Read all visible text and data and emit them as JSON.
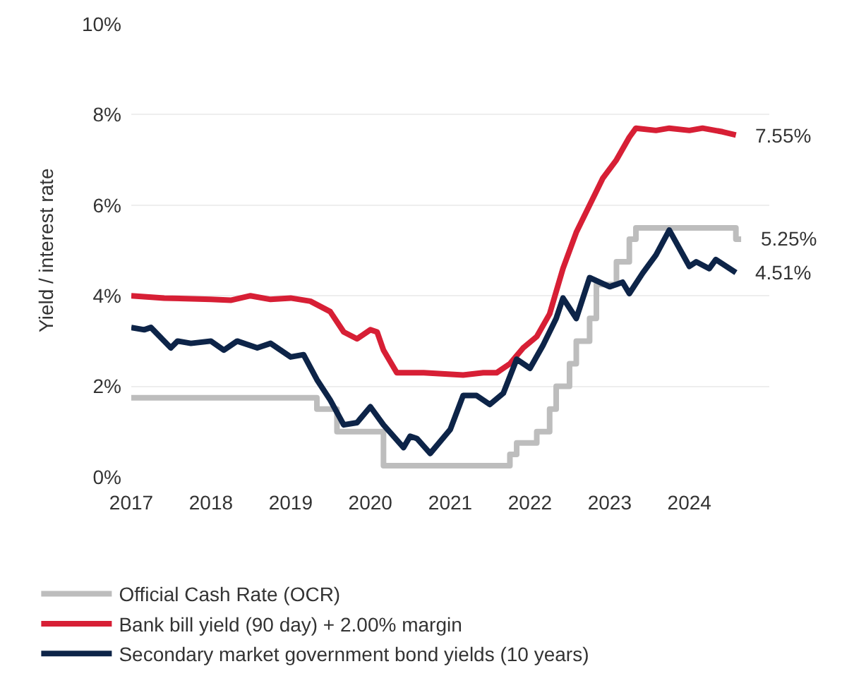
{
  "chart_data": {
    "type": "line",
    "ylabel": "Yield / interest rate",
    "xlim": [
      "2017-01-01",
      "2025-01-01"
    ],
    "xticks": [
      {
        "value": "2017-01-01",
        "label": "2017"
      },
      {
        "value": "2018-01-01",
        "label": "2018"
      },
      {
        "value": "2019-01-01",
        "label": "2019"
      },
      {
        "value": "2020-01-01",
        "label": "2020"
      },
      {
        "value": "2021-01-01",
        "label": "2021"
      },
      {
        "value": "2022-01-01",
        "label": "2022"
      },
      {
        "value": "2023-01-01",
        "label": "2023"
      },
      {
        "value": "2024-01-01",
        "label": "2024"
      }
    ],
    "ylim": [
      0,
      10
    ],
    "yticks": [
      {
        "value": 0,
        "label": "0%"
      },
      {
        "value": 2,
        "label": "2%"
      },
      {
        "value": 4,
        "label": "4%"
      },
      {
        "value": 6,
        "label": "6%"
      },
      {
        "value": 8,
        "label": "8%"
      },
      {
        "value": 10,
        "label": "10%"
      }
    ],
    "grid": "y",
    "legend": "bottom",
    "series": [
      {
        "name": "Official Cash Rate (OCR)",
        "type": "step",
        "color": "#bdbdbd",
        "x": [
          "2017-01",
          "2019-05",
          "2019-08",
          "2020-03",
          "2021-10",
          "2021-11",
          "2022-02",
          "2022-04",
          "2022-05",
          "2022-07",
          "2022-08",
          "2022-10",
          "2022-11",
          "2023-02",
          "2023-04",
          "2023-05",
          "2024-08",
          "2024-08-25"
        ],
        "values": [
          1.75,
          1.5,
          1.0,
          0.25,
          0.5,
          0.75,
          1.0,
          1.5,
          2.0,
          2.5,
          3.0,
          3.5,
          4.25,
          4.75,
          5.25,
          5.5,
          5.25,
          5.25
        ]
      },
      {
        "name": "Bank bill yield (90 day) + 2.00% margin",
        "color": "#d71f35",
        "x": [
          "2017-01",
          "2017-06",
          "2018-01",
          "2018-04",
          "2018-07",
          "2018-10",
          "2019-01",
          "2019-04",
          "2019-07",
          "2019-09",
          "2019-11",
          "2020-01",
          "2020-02",
          "2020-03",
          "2020-05",
          "2020-09",
          "2021-03",
          "2021-06",
          "2021-08",
          "2021-10",
          "2021-12",
          "2022-02",
          "2022-04",
          "2022-06",
          "2022-08",
          "2022-10",
          "2022-12",
          "2023-02",
          "2023-04",
          "2023-05",
          "2023-08",
          "2023-10",
          "2024-01",
          "2024-03",
          "2024-06",
          "2024-08"
        ],
        "values": [
          4.0,
          3.95,
          3.92,
          3.9,
          4.0,
          3.92,
          3.95,
          3.88,
          3.65,
          3.2,
          3.05,
          3.25,
          3.2,
          2.8,
          2.3,
          2.3,
          2.25,
          2.3,
          2.3,
          2.5,
          2.85,
          3.1,
          3.6,
          4.6,
          5.4,
          6.0,
          6.6,
          7.0,
          7.5,
          7.7,
          7.65,
          7.7,
          7.65,
          7.7,
          7.62,
          7.55
        ]
      },
      {
        "name": "Secondary market government bond yields (10 years)",
        "color": "#0d2448",
        "x": [
          "2017-01",
          "2017-03",
          "2017-04",
          "2017-07",
          "2017-08",
          "2017-10",
          "2018-01",
          "2018-03",
          "2018-05",
          "2018-08",
          "2018-10",
          "2019-01",
          "2019-03",
          "2019-05",
          "2019-07",
          "2019-09",
          "2019-11",
          "2020-01",
          "2020-03",
          "2020-06",
          "2020-07",
          "2020-08",
          "2020-10",
          "2021-01",
          "2021-03",
          "2021-05",
          "2021-07",
          "2021-09",
          "2021-11",
          "2022-01",
          "2022-03",
          "2022-05",
          "2022-06",
          "2022-08",
          "2022-10",
          "2023-01",
          "2023-03",
          "2023-04",
          "2023-06",
          "2023-08",
          "2023-10",
          "2024-01",
          "2024-02",
          "2024-04",
          "2024-05",
          "2024-08"
        ],
        "values": [
          3.3,
          3.25,
          3.3,
          2.85,
          3.0,
          2.95,
          3.0,
          2.8,
          3.0,
          2.85,
          2.95,
          2.65,
          2.7,
          2.15,
          1.7,
          1.15,
          1.2,
          1.55,
          1.15,
          0.65,
          0.9,
          0.85,
          0.52,
          1.05,
          1.8,
          1.8,
          1.6,
          1.85,
          2.6,
          2.4,
          2.9,
          3.5,
          3.95,
          3.5,
          4.4,
          4.2,
          4.3,
          4.05,
          4.5,
          4.9,
          5.45,
          4.65,
          4.75,
          4.6,
          4.8,
          4.51
        ]
      }
    ],
    "annotations": [
      {
        "text": "7.55%",
        "x": "2024-08",
        "y": 7.55
      },
      {
        "text": "5.25%",
        "x": "2024-08-25",
        "y": 5.25
      },
      {
        "text": "4.51%",
        "x": "2024-08",
        "y": 4.51
      }
    ]
  }
}
